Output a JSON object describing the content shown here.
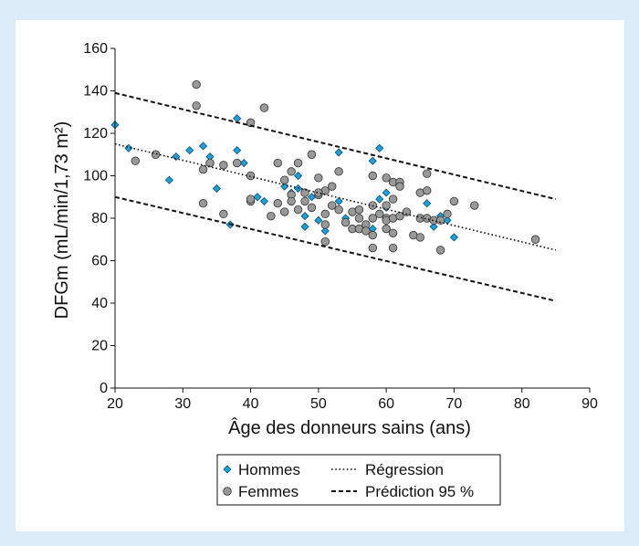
{
  "chart_data": {
    "type": "scatter",
    "xlabel": "Âge des donneurs sains (ans)",
    "ylabel": "DFGm (mL/min/1,73 m²)",
    "xlim": [
      20,
      90
    ],
    "ylim": [
      0,
      160
    ],
    "xticks": [
      20,
      30,
      40,
      50,
      60,
      70,
      80,
      90
    ],
    "yticks": [
      0,
      20,
      40,
      60,
      80,
      100,
      120,
      140,
      160
    ],
    "grid": false,
    "legend_position": "bottom-center",
    "series": [
      {
        "name": "Hommes",
        "marker": "diamond",
        "color": "#1e9fd8",
        "points": [
          [
            20,
            124
          ],
          [
            22,
            113
          ],
          [
            29,
            109
          ],
          [
            31,
            112
          ],
          [
            33,
            114
          ],
          [
            34,
            109
          ],
          [
            35,
            94
          ],
          [
            37,
            77
          ],
          [
            38,
            112
          ],
          [
            38,
            127
          ],
          [
            39,
            106
          ],
          [
            41,
            90
          ],
          [
            42,
            88
          ],
          [
            45,
            95
          ],
          [
            46,
            92
          ],
          [
            47,
            100
          ],
          [
            47,
            94
          ],
          [
            48,
            76
          ],
          [
            48,
            81
          ],
          [
            49,
            90
          ],
          [
            50,
            79
          ],
          [
            51,
            74
          ],
          [
            53,
            88
          ],
          [
            53,
            111
          ],
          [
            54,
            80
          ],
          [
            58,
            75
          ],
          [
            58,
            107
          ],
          [
            59,
            113
          ],
          [
            59,
            89
          ],
          [
            60,
            92
          ],
          [
            60,
            85
          ],
          [
            65,
            80
          ],
          [
            66,
            87
          ],
          [
            67,
            76
          ],
          [
            68,
            81
          ],
          [
            69,
            79
          ],
          [
            70,
            71
          ],
          [
            28,
            98
          ]
        ]
      },
      {
        "name": "Femmes",
        "marker": "circle",
        "color": "#999999",
        "points": [
          [
            23,
            107
          ],
          [
            26,
            110
          ],
          [
            32,
            143
          ],
          [
            32,
            133
          ],
          [
            33,
            103
          ],
          [
            33,
            87
          ],
          [
            34,
            106
          ],
          [
            36,
            105
          ],
          [
            36,
            82
          ],
          [
            38,
            106
          ],
          [
            40,
            100
          ],
          [
            40,
            125
          ],
          [
            40,
            88
          ],
          [
            40,
            89
          ],
          [
            42,
            132
          ],
          [
            43,
            81
          ],
          [
            44,
            106
          ],
          [
            44,
            87
          ],
          [
            45,
            98
          ],
          [
            45,
            83
          ],
          [
            46,
            102
          ],
          [
            46,
            91
          ],
          [
            46,
            88
          ],
          [
            47,
            106
          ],
          [
            47,
            84
          ],
          [
            48,
            92
          ],
          [
            48,
            88
          ],
          [
            49,
            110
          ],
          [
            49,
            85
          ],
          [
            50,
            99
          ],
          [
            50,
            91
          ],
          [
            51,
            93
          ],
          [
            51,
            82
          ],
          [
            51,
            69
          ],
          [
            52,
            95
          ],
          [
            52,
            86
          ],
          [
            53,
            102
          ],
          [
            53,
            84
          ],
          [
            54,
            78
          ],
          [
            55,
            83
          ],
          [
            55,
            75
          ],
          [
            56,
            80
          ],
          [
            56,
            75
          ],
          [
            57,
            77
          ],
          [
            57,
            74
          ],
          [
            58,
            100
          ],
          [
            58,
            86
          ],
          [
            58,
            80
          ],
          [
            58,
            72
          ],
          [
            58,
            66
          ],
          [
            59,
            82
          ],
          [
            60,
            99
          ],
          [
            60,
            86
          ],
          [
            60,
            80
          ],
          [
            60,
            79
          ],
          [
            60,
            75
          ],
          [
            61,
            97
          ],
          [
            61,
            89
          ],
          [
            61,
            80
          ],
          [
            61,
            73
          ],
          [
            62,
            97
          ],
          [
            62,
            95
          ],
          [
            62,
            81
          ],
          [
            63,
            83
          ],
          [
            64,
            72
          ],
          [
            65,
            92
          ],
          [
            65,
            71
          ],
          [
            65,
            80
          ],
          [
            66,
            101
          ],
          [
            66,
            93
          ],
          [
            66,
            80
          ],
          [
            67,
            79
          ],
          [
            68,
            65
          ],
          [
            68,
            79
          ],
          [
            69,
            82
          ],
          [
            70,
            88
          ],
          [
            73,
            86
          ],
          [
            82,
            70
          ],
          [
            50,
            92
          ],
          [
            51,
            77
          ],
          [
            61,
            66
          ],
          [
            56,
            84
          ]
        ]
      }
    ],
    "lines": [
      {
        "name": "Régression",
        "style": "dotted",
        "x": [
          20,
          85
        ],
        "y": [
          115,
          65
        ]
      },
      {
        "name": "Prédiction 95 %",
        "style": "dashed",
        "x": [
          20,
          85
        ],
        "y": [
          139,
          89
        ]
      },
      {
        "name": "Prédiction 95 %",
        "style": "dashed",
        "x": [
          20,
          85
        ],
        "y": [
          90,
          41
        ]
      }
    ],
    "legend": {
      "hommes": "Hommes",
      "femmes": "Femmes",
      "regression": "Régression",
      "prediction": "Prédiction 95 %"
    }
  }
}
